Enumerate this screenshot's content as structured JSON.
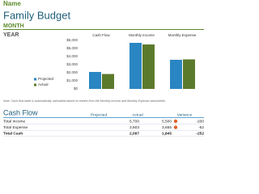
{
  "header": {
    "name": "Name",
    "title": "Family Budget",
    "month": "MONTH",
    "year": "YEAR"
  },
  "chart_data": {
    "type": "bar",
    "categories": [
      "Cash Flow",
      "Monthly Income",
      "Monthly Expense"
    ],
    "series": [
      {
        "name": "Projected",
        "color": "#2a86c2",
        "values": [
          2097,
          5700,
          3603
        ]
      },
      {
        "name": "Actual",
        "color": "#5c7a2c",
        "values": [
          1845,
          5500,
          3655
        ]
      }
    ],
    "ylim": [
      0,
      6000
    ],
    "yticks": [
      {
        "value": 0,
        "label": "$0"
      },
      {
        "value": 1000,
        "label": "$1,000"
      },
      {
        "value": 2000,
        "label": "$2,000"
      },
      {
        "value": 3000,
        "label": "$3,000"
      },
      {
        "value": 4000,
        "label": "$4,000"
      },
      {
        "value": 5000,
        "label": "$5,000"
      },
      {
        "value": 6000,
        "label": "$6,000"
      }
    ],
    "grid": false,
    "legend": "left"
  },
  "note": "Note: Cash flow table is automatically calculated based on entries from the Monthly Income and Monthly Expense worksheets.",
  "table": {
    "title": "Cash Flow",
    "columns": [
      "Projected",
      "Actual",
      "Variance"
    ],
    "rows": [
      [
        "Total Income",
        "5,700",
        "5,500",
        "-200"
      ],
      [
        "Total Expense",
        "3,603",
        "3,655",
        "-52"
      ],
      [
        "Total Cash",
        "2,097",
        "1,845",
        "-252"
      ]
    ]
  }
}
